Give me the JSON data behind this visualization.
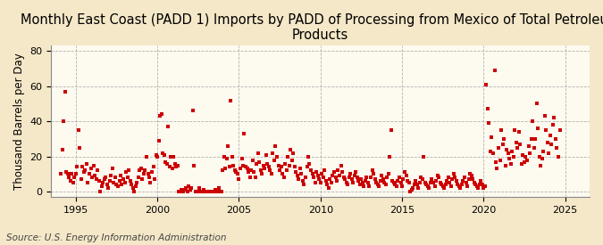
{
  "title": "Monthly East Coast (PADD 1) Imports by PADD of Processing from Mexico of Total Petroleum\nProducts",
  "ylabel": "Thousand Barrels per Day",
  "source": "Source: U.S. Energy Information Administration",
  "figure_bg": "#F5E8C8",
  "plot_bg": "#FDFAF0",
  "marker_color": "#CC0000",
  "xlim": [
    1993.5,
    2026.5
  ],
  "ylim": [
    -3,
    83
  ],
  "yticks": [
    0,
    20,
    40,
    60,
    80
  ],
  "xticks": [
    1995,
    2000,
    2005,
    2010,
    2015,
    2020,
    2025
  ],
  "grid_color": "#AAAAAA",
  "title_fontsize": 10.5,
  "ylabel_fontsize": 8.5,
  "source_fontsize": 7.5,
  "tick_fontsize": 8,
  "data": [
    [
      1994.08,
      10
    ],
    [
      1994.17,
      24
    ],
    [
      1994.25,
      40
    ],
    [
      1994.33,
      57
    ],
    [
      1994.42,
      11
    ],
    [
      1994.5,
      10
    ],
    [
      1994.58,
      8
    ],
    [
      1994.67,
      6
    ],
    [
      1994.75,
      10
    ],
    [
      1994.83,
      5
    ],
    [
      1994.92,
      8
    ],
    [
      1995.0,
      10
    ],
    [
      1995.08,
      14
    ],
    [
      1995.17,
      35
    ],
    [
      1995.25,
      25
    ],
    [
      1995.33,
      7
    ],
    [
      1995.42,
      14
    ],
    [
      1995.5,
      11
    ],
    [
      1995.58,
      12
    ],
    [
      1995.67,
      16
    ],
    [
      1995.75,
      5
    ],
    [
      1995.83,
      10
    ],
    [
      1995.92,
      13
    ],
    [
      1996.0,
      8
    ],
    [
      1996.08,
      15
    ],
    [
      1996.17,
      9
    ],
    [
      1996.25,
      7
    ],
    [
      1996.33,
      12
    ],
    [
      1996.42,
      6
    ],
    [
      1996.5,
      0
    ],
    [
      1996.58,
      3
    ],
    [
      1996.67,
      5
    ],
    [
      1996.75,
      7
    ],
    [
      1996.83,
      8
    ],
    [
      1996.92,
      4
    ],
    [
      1997.0,
      2
    ],
    [
      1997.08,
      6
    ],
    [
      1997.17,
      9
    ],
    [
      1997.25,
      13
    ],
    [
      1997.33,
      5
    ],
    [
      1997.42,
      8
    ],
    [
      1997.5,
      4
    ],
    [
      1997.58,
      3
    ],
    [
      1997.67,
      6
    ],
    [
      1997.75,
      9
    ],
    [
      1997.83,
      4
    ],
    [
      1997.92,
      7
    ],
    [
      1998.0,
      5
    ],
    [
      1998.08,
      11
    ],
    [
      1998.17,
      8
    ],
    [
      1998.25,
      12
    ],
    [
      1998.33,
      6
    ],
    [
      1998.42,
      4
    ],
    [
      1998.5,
      2
    ],
    [
      1998.58,
      0
    ],
    [
      1998.67,
      3
    ],
    [
      1998.75,
      5
    ],
    [
      1998.83,
      8
    ],
    [
      1998.92,
      12
    ],
    [
      1999.0,
      13
    ],
    [
      1999.08,
      7
    ],
    [
      1999.17,
      10
    ],
    [
      1999.25,
      12
    ],
    [
      1999.33,
      20
    ],
    [
      1999.42,
      10
    ],
    [
      1999.5,
      8
    ],
    [
      1999.58,
      5
    ],
    [
      1999.67,
      11
    ],
    [
      1999.75,
      14
    ],
    [
      1999.83,
      7
    ],
    [
      1999.92,
      21
    ],
    [
      2000.0,
      20
    ],
    [
      2000.08,
      29
    ],
    [
      2000.17,
      43
    ],
    [
      2000.25,
      44
    ],
    [
      2000.33,
      22
    ],
    [
      2000.42,
      21
    ],
    [
      2000.5,
      17
    ],
    [
      2000.58,
      16
    ],
    [
      2000.67,
      37
    ],
    [
      2000.75,
      14
    ],
    [
      2000.83,
      20
    ],
    [
      2000.92,
      13
    ],
    [
      2001.0,
      20
    ],
    [
      2001.08,
      16
    ],
    [
      2001.17,
      14
    ],
    [
      2001.25,
      15
    ],
    [
      2001.33,
      0
    ],
    [
      2001.42,
      0
    ],
    [
      2001.5,
      1
    ],
    [
      2001.58,
      0
    ],
    [
      2001.67,
      1
    ],
    [
      2001.75,
      2
    ],
    [
      2001.83,
      0
    ],
    [
      2001.92,
      3
    ],
    [
      2002.0,
      1
    ],
    [
      2002.08,
      2
    ],
    [
      2002.17,
      46
    ],
    [
      2002.25,
      15
    ],
    [
      2002.33,
      0
    ],
    [
      2002.42,
      0
    ],
    [
      2002.5,
      0
    ],
    [
      2002.58,
      2
    ],
    [
      2002.67,
      0
    ],
    [
      2002.75,
      0
    ],
    [
      2002.83,
      1
    ],
    [
      2002.92,
      0
    ],
    [
      2003.0,
      0
    ],
    [
      2003.08,
      0
    ],
    [
      2003.17,
      0
    ],
    [
      2003.25,
      0
    ],
    [
      2003.33,
      0
    ],
    [
      2003.42,
      0
    ],
    [
      2003.5,
      0
    ],
    [
      2003.58,
      1
    ],
    [
      2003.67,
      0
    ],
    [
      2003.75,
      2
    ],
    [
      2003.83,
      0
    ],
    [
      2003.92,
      0
    ],
    [
      2004.0,
      12
    ],
    [
      2004.08,
      20
    ],
    [
      2004.17,
      13
    ],
    [
      2004.25,
      19
    ],
    [
      2004.33,
      26
    ],
    [
      2004.42,
      14
    ],
    [
      2004.5,
      52
    ],
    [
      2004.58,
      20
    ],
    [
      2004.67,
      15
    ],
    [
      2004.75,
      12
    ],
    [
      2004.83,
      11
    ],
    [
      2004.92,
      10
    ],
    [
      2005.0,
      7
    ],
    [
      2005.08,
      13
    ],
    [
      2005.17,
      19
    ],
    [
      2005.25,
      15
    ],
    [
      2005.33,
      33
    ],
    [
      2005.42,
      14
    ],
    [
      2005.5,
      13
    ],
    [
      2005.58,
      11
    ],
    [
      2005.67,
      8
    ],
    [
      2005.75,
      12
    ],
    [
      2005.83,
      18
    ],
    [
      2005.92,
      11
    ],
    [
      2006.0,
      8
    ],
    [
      2006.08,
      16
    ],
    [
      2006.17,
      22
    ],
    [
      2006.25,
      17
    ],
    [
      2006.33,
      12
    ],
    [
      2006.42,
      10
    ],
    [
      2006.5,
      15
    ],
    [
      2006.58,
      13
    ],
    [
      2006.67,
      21
    ],
    [
      2006.75,
      16
    ],
    [
      2006.83,
      14
    ],
    [
      2006.92,
      12
    ],
    [
      2007.0,
      10
    ],
    [
      2007.08,
      22
    ],
    [
      2007.17,
      18
    ],
    [
      2007.25,
      26
    ],
    [
      2007.33,
      20
    ],
    [
      2007.42,
      15
    ],
    [
      2007.5,
      12
    ],
    [
      2007.58,
      14
    ],
    [
      2007.67,
      10
    ],
    [
      2007.75,
      8
    ],
    [
      2007.83,
      16
    ],
    [
      2007.92,
      12
    ],
    [
      2008.0,
      20
    ],
    [
      2008.08,
      15
    ],
    [
      2008.17,
      24
    ],
    [
      2008.25,
      18
    ],
    [
      2008.33,
      22
    ],
    [
      2008.42,
      14
    ],
    [
      2008.5,
      11
    ],
    [
      2008.58,
      9
    ],
    [
      2008.67,
      7
    ],
    [
      2008.75,
      13
    ],
    [
      2008.83,
      10
    ],
    [
      2008.92,
      6
    ],
    [
      2009.0,
      4
    ],
    [
      2009.08,
      8
    ],
    [
      2009.17,
      14
    ],
    [
      2009.25,
      20
    ],
    [
      2009.33,
      16
    ],
    [
      2009.42,
      12
    ],
    [
      2009.5,
      10
    ],
    [
      2009.58,
      8
    ],
    [
      2009.67,
      5
    ],
    [
      2009.75,
      11
    ],
    [
      2009.83,
      9
    ],
    [
      2009.92,
      7
    ],
    [
      2010.0,
      5
    ],
    [
      2010.08,
      10
    ],
    [
      2010.17,
      8
    ],
    [
      2010.25,
      12
    ],
    [
      2010.33,
      6
    ],
    [
      2010.42,
      4
    ],
    [
      2010.5,
      2
    ],
    [
      2010.58,
      7
    ],
    [
      2010.67,
      5
    ],
    [
      2010.75,
      9
    ],
    [
      2010.83,
      11
    ],
    [
      2010.92,
      8
    ],
    [
      2011.0,
      6
    ],
    [
      2011.08,
      12
    ],
    [
      2011.17,
      9
    ],
    [
      2011.25,
      15
    ],
    [
      2011.33,
      11
    ],
    [
      2011.42,
      8
    ],
    [
      2011.5,
      7
    ],
    [
      2011.58,
      5
    ],
    [
      2011.67,
      4
    ],
    [
      2011.75,
      8
    ],
    [
      2011.83,
      10
    ],
    [
      2011.92,
      7
    ],
    [
      2012.0,
      5
    ],
    [
      2012.08,
      9
    ],
    [
      2012.17,
      11
    ],
    [
      2012.25,
      8
    ],
    [
      2012.33,
      6
    ],
    [
      2012.42,
      4
    ],
    [
      2012.5,
      7
    ],
    [
      2012.58,
      5
    ],
    [
      2012.67,
      3
    ],
    [
      2012.75,
      6
    ],
    [
      2012.83,
      8
    ],
    [
      2012.92,
      5
    ],
    [
      2013.0,
      3
    ],
    [
      2013.08,
      8
    ],
    [
      2013.17,
      12
    ],
    [
      2013.25,
      10
    ],
    [
      2013.33,
      7
    ],
    [
      2013.42,
      5
    ],
    [
      2013.5,
      4
    ],
    [
      2013.58,
      3
    ],
    [
      2013.67,
      6
    ],
    [
      2013.75,
      9
    ],
    [
      2013.83,
      7
    ],
    [
      2013.92,
      5
    ],
    [
      2014.0,
      4
    ],
    [
      2014.08,
      8
    ],
    [
      2014.17,
      10
    ],
    [
      2014.25,
      20
    ],
    [
      2014.33,
      35
    ],
    [
      2014.42,
      6
    ],
    [
      2014.5,
      5
    ],
    [
      2014.58,
      4
    ],
    [
      2014.67,
      3
    ],
    [
      2014.75,
      6
    ],
    [
      2014.83,
      8
    ],
    [
      2014.92,
      5
    ],
    [
      2015.0,
      3
    ],
    [
      2015.08,
      7
    ],
    [
      2015.17,
      11
    ],
    [
      2015.25,
      9
    ],
    [
      2015.33,
      6
    ],
    [
      2015.42,
      5
    ],
    [
      2015.5,
      0
    ],
    [
      2015.58,
      1
    ],
    [
      2015.67,
      2
    ],
    [
      2015.75,
      4
    ],
    [
      2015.83,
      6
    ],
    [
      2015.92,
      4
    ],
    [
      2016.0,
      2
    ],
    [
      2016.08,
      5
    ],
    [
      2016.17,
      8
    ],
    [
      2016.25,
      7
    ],
    [
      2016.33,
      20
    ],
    [
      2016.42,
      5
    ],
    [
      2016.5,
      4
    ],
    [
      2016.58,
      3
    ],
    [
      2016.67,
      2
    ],
    [
      2016.75,
      5
    ],
    [
      2016.83,
      7
    ],
    [
      2016.92,
      5
    ],
    [
      2017.0,
      3
    ],
    [
      2017.08,
      6
    ],
    [
      2017.17,
      9
    ],
    [
      2017.25,
      8
    ],
    [
      2017.33,
      5
    ],
    [
      2017.42,
      4
    ],
    [
      2017.5,
      3
    ],
    [
      2017.58,
      2
    ],
    [
      2017.67,
      4
    ],
    [
      2017.75,
      6
    ],
    [
      2017.83,
      8
    ],
    [
      2017.92,
      5
    ],
    [
      2018.0,
      3
    ],
    [
      2018.08,
      7
    ],
    [
      2018.17,
      10
    ],
    [
      2018.25,
      8
    ],
    [
      2018.33,
      6
    ],
    [
      2018.42,
      4
    ],
    [
      2018.5,
      3
    ],
    [
      2018.58,
      2
    ],
    [
      2018.67,
      4
    ],
    [
      2018.75,
      6
    ],
    [
      2018.83,
      8
    ],
    [
      2018.92,
      5
    ],
    [
      2019.0,
      3
    ],
    [
      2019.08,
      7
    ],
    [
      2019.17,
      10
    ],
    [
      2019.25,
      9
    ],
    [
      2019.33,
      7
    ],
    [
      2019.42,
      5
    ],
    [
      2019.5,
      4
    ],
    [
      2019.58,
      3
    ],
    [
      2019.67,
      2
    ],
    [
      2019.75,
      4
    ],
    [
      2019.83,
      6
    ],
    [
      2019.92,
      4
    ],
    [
      2020.0,
      2
    ],
    [
      2020.08,
      3
    ],
    [
      2020.17,
      61
    ],
    [
      2020.25,
      47
    ],
    [
      2020.33,
      39
    ],
    [
      2020.42,
      23
    ],
    [
      2020.5,
      31
    ],
    [
      2020.58,
      22
    ],
    [
      2020.67,
      69
    ],
    [
      2020.75,
      17
    ],
    [
      2020.83,
      13
    ],
    [
      2020.92,
      25
    ],
    [
      2021.0,
      18
    ],
    [
      2021.08,
      35
    ],
    [
      2021.17,
      27
    ],
    [
      2021.25,
      30
    ],
    [
      2021.33,
      15
    ],
    [
      2021.42,
      24
    ],
    [
      2021.5,
      22
    ],
    [
      2021.58,
      19
    ],
    [
      2021.67,
      16
    ],
    [
      2021.75,
      23
    ],
    [
      2021.83,
      20
    ],
    [
      2021.92,
      35
    ],
    [
      2022.0,
      28
    ],
    [
      2022.08,
      25
    ],
    [
      2022.17,
      34
    ],
    [
      2022.25,
      27
    ],
    [
      2022.33,
      16
    ],
    [
      2022.42,
      21
    ],
    [
      2022.5,
      17
    ],
    [
      2022.58,
      20
    ],
    [
      2022.67,
      18
    ],
    [
      2022.75,
      26
    ],
    [
      2022.83,
      22
    ],
    [
      2022.92,
      30
    ],
    [
      2023.0,
      40
    ],
    [
      2023.08,
      25
    ],
    [
      2023.17,
      30
    ],
    [
      2023.25,
      50
    ],
    [
      2023.33,
      36
    ],
    [
      2023.42,
      20
    ],
    [
      2023.5,
      15
    ],
    [
      2023.58,
      19
    ],
    [
      2023.67,
      23
    ],
    [
      2023.75,
      43
    ],
    [
      2023.83,
      35
    ],
    [
      2023.92,
      28
    ],
    [
      2024.0,
      22
    ],
    [
      2024.08,
      32
    ],
    [
      2024.17,
      27
    ],
    [
      2024.25,
      38
    ],
    [
      2024.33,
      42
    ],
    [
      2024.42,
      30
    ],
    [
      2024.5,
      25
    ],
    [
      2024.58,
      20
    ],
    [
      2024.67,
      35
    ]
  ]
}
